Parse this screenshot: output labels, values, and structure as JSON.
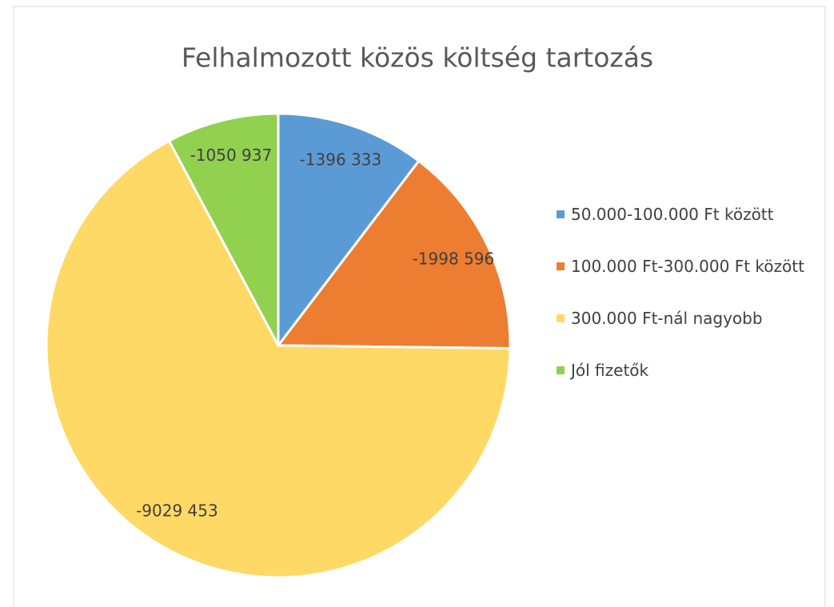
{
  "chart_data": {
    "type": "pie",
    "title": "Felhalmozott közös költség tartozás",
    "categories": [
      "50.000-100.000 Ft között",
      "100.000 Ft-300.000 Ft között",
      "300.000 Ft-nál nagyobb",
      "Jól fizetők"
    ],
    "values": [
      -1396333,
      -1998596,
      -9029453,
      -1050937
    ],
    "value_labels": [
      "-1396 333",
      "-1998 596",
      "-9029 453",
      "-1050 937"
    ],
    "colors": [
      "#5b9bd5",
      "#ed7d31",
      "#ffd966",
      "#92d050"
    ],
    "legend": "right"
  }
}
